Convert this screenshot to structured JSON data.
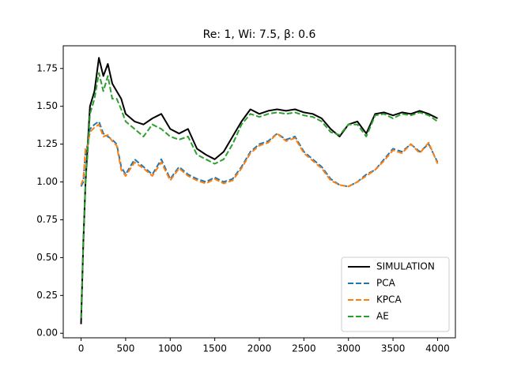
{
  "chart_data": {
    "type": "line",
    "title": "Re: 1, Wi: 7.5, β: 0.6",
    "x": [
      0,
      25,
      50,
      75,
      100,
      150,
      200,
      250,
      300,
      350,
      400,
      450,
      500,
      600,
      700,
      800,
      900,
      1000,
      1100,
      1200,
      1300,
      1400,
      1500,
      1600,
      1700,
      1800,
      1900,
      2000,
      2100,
      2200,
      2300,
      2400,
      2500,
      2600,
      2700,
      2800,
      2900,
      3000,
      3100,
      3200,
      3300,
      3400,
      3500,
      3600,
      3700,
      3800,
      3900,
      4000
    ],
    "series": [
      {
        "name": "SIMULATION",
        "color": "#000000",
        "linestyle": "solid",
        "values": [
          0.06,
          0.6,
          1.0,
          1.25,
          1.5,
          1.6,
          1.82,
          1.7,
          1.78,
          1.65,
          1.6,
          1.55,
          1.45,
          1.4,
          1.38,
          1.42,
          1.45,
          1.35,
          1.32,
          1.35,
          1.22,
          1.18,
          1.15,
          1.2,
          1.3,
          1.4,
          1.48,
          1.45,
          1.47,
          1.48,
          1.47,
          1.48,
          1.46,
          1.45,
          1.42,
          1.35,
          1.3,
          1.38,
          1.4,
          1.32,
          1.45,
          1.46,
          1.44,
          1.46,
          1.45,
          1.47,
          1.45,
          1.42
        ]
      },
      {
        "name": "PCA",
        "color": "#1f77b4",
        "linestyle": "dashed",
        "values": [
          0.97,
          1.0,
          1.2,
          1.25,
          1.35,
          1.38,
          1.4,
          1.32,
          1.3,
          1.28,
          1.25,
          1.1,
          1.05,
          1.15,
          1.1,
          1.05,
          1.15,
          1.02,
          1.1,
          1.05,
          1.02,
          1.0,
          1.03,
          1.0,
          1.02,
          1.1,
          1.2,
          1.25,
          1.27,
          1.32,
          1.28,
          1.3,
          1.2,
          1.15,
          1.1,
          1.02,
          0.98,
          0.97,
          1.0,
          1.05,
          1.08,
          1.15,
          1.22,
          1.2,
          1.25,
          1.2,
          1.25,
          1.13
        ]
      },
      {
        "name": "KPCA",
        "color": "#ff7f0e",
        "linestyle": "dashed",
        "values": [
          0.98,
          1.02,
          1.22,
          1.24,
          1.33,
          1.36,
          1.38,
          1.3,
          1.31,
          1.27,
          1.24,
          1.08,
          1.04,
          1.13,
          1.09,
          1.04,
          1.13,
          1.01,
          1.09,
          1.04,
          1.01,
          0.99,
          1.02,
          0.99,
          1.01,
          1.09,
          1.19,
          1.24,
          1.26,
          1.32,
          1.27,
          1.29,
          1.19,
          1.14,
          1.09,
          1.01,
          0.98,
          0.97,
          1.0,
          1.04,
          1.08,
          1.14,
          1.21,
          1.19,
          1.25,
          1.19,
          1.26,
          1.12
        ]
      },
      {
        "name": "AE",
        "color": "#2ca02c",
        "linestyle": "dashed",
        "values": [
          0.1,
          0.6,
          1.0,
          1.2,
          1.45,
          1.55,
          1.72,
          1.6,
          1.7,
          1.55,
          1.55,
          1.48,
          1.4,
          1.35,
          1.3,
          1.38,
          1.35,
          1.3,
          1.28,
          1.3,
          1.18,
          1.15,
          1.12,
          1.15,
          1.25,
          1.38,
          1.45,
          1.43,
          1.45,
          1.46,
          1.45,
          1.46,
          1.44,
          1.43,
          1.4,
          1.33,
          1.31,
          1.38,
          1.38,
          1.3,
          1.44,
          1.45,
          1.42,
          1.45,
          1.44,
          1.46,
          1.44,
          1.4
        ]
      }
    ],
    "xlim": [
      -200,
      4200
    ],
    "ylim": [
      -0.03,
      1.9
    ],
    "xticks": [
      0,
      500,
      1000,
      1500,
      2000,
      2500,
      3000,
      3500,
      4000
    ],
    "yticks": [
      {
        "value": 0,
        "label": "0.00"
      },
      0.25,
      {
        "value": 0.5,
        "label": "0.50"
      },
      0.75,
      {
        "value": 1,
        "label": "1.00"
      },
      1.25,
      {
        "value": 1.5,
        "label": "1.50"
      },
      1.75
    ],
    "legend": "lower right"
  }
}
